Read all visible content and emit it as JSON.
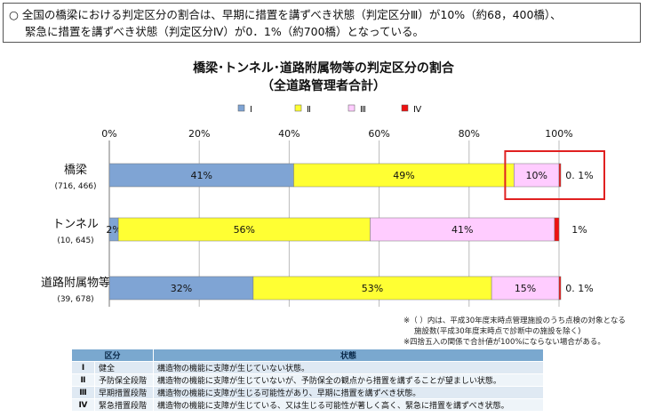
{
  "summary": {
    "line1": "○ 全国の橋梁における判定区分の割合は、早期に措置を講ずべき状態（判定区分Ⅲ）が10%（約68，400橋）、",
    "line2": "緊急に措置を講ずべき状態（判定区分Ⅳ）が0．1%（約700橋）となっている。"
  },
  "chart_data": {
    "type": "bar",
    "orientation": "horizontal",
    "stacked": true,
    "title": "橋梁･トンネル･道路附属物等の判定区分の割合",
    "subtitle": "（全道路管理者合計）",
    "x_ticks": [
      "0%",
      "20%",
      "40%",
      "60%",
      "80%",
      "100%"
    ],
    "xlim": [
      0,
      100
    ],
    "grid": true,
    "legend_position": "top",
    "categories": [
      {
        "name": "橋梁",
        "count": "(716, 466)"
      },
      {
        "name": "トンネル",
        "count": "(10, 645)"
      },
      {
        "name": "道路附属物等",
        "count": "(39, 678)"
      }
    ],
    "series": [
      {
        "name": "Ⅰ",
        "color": "#7fa4d4",
        "values": [
          41,
          2,
          32
        ],
        "labels": [
          "41%",
          "2%",
          "32%"
        ]
      },
      {
        "name": "Ⅱ",
        "color": "#ffff33",
        "values": [
          49,
          56,
          53
        ],
        "labels": [
          "49%",
          "56%",
          "53%"
        ]
      },
      {
        "name": "Ⅲ",
        "color": "#ffccff",
        "values": [
          10,
          41,
          15
        ],
        "labels": [
          "10%",
          "41%",
          "15%"
        ]
      },
      {
        "name": "Ⅳ",
        "color": "#ee1111",
        "values": [
          0.1,
          1,
          0.1
        ],
        "labels": [
          "",
          "",
          ""
        ]
      }
    ],
    "outside_labels": [
      "0. 1%",
      "1%",
      "0. 1%"
    ],
    "highlight": {
      "category_index": 0,
      "note": "red box around Ⅲ and Ⅳ segments"
    }
  },
  "notes": {
    "line1": "※（ ）内は、平成30年度末時点管理施設のうち点検の対象となる",
    "line2": "施設数(平成30年度末時点で診断中の施設を除く)",
    "line3": "※四捨五入の関係で合計値が100%にならない場合がある。"
  },
  "legend_table": {
    "headers": [
      "区分",
      "状態"
    ],
    "rows": [
      {
        "code": "Ⅰ",
        "name": "健全",
        "state": "構造物の機能に支障が生じていない状態。"
      },
      {
        "code": "Ⅱ",
        "name": "予防保全段階",
        "state": "構造物の機能に支障が生じていないが、予防保全の観点から措置を講ずることが望ましい状態。"
      },
      {
        "code": "Ⅲ",
        "name": "早期措置段階",
        "state": "構造物の機能に支障が生じる可能性があり、早期に措置を講ずべき状態。"
      },
      {
        "code": "Ⅳ",
        "name": "緊急措置段階",
        "state": "構造物の機能に支障が生じている、又は生じる可能性が著しく高く、緊急に措置を講ずべき状態。"
      }
    ]
  }
}
